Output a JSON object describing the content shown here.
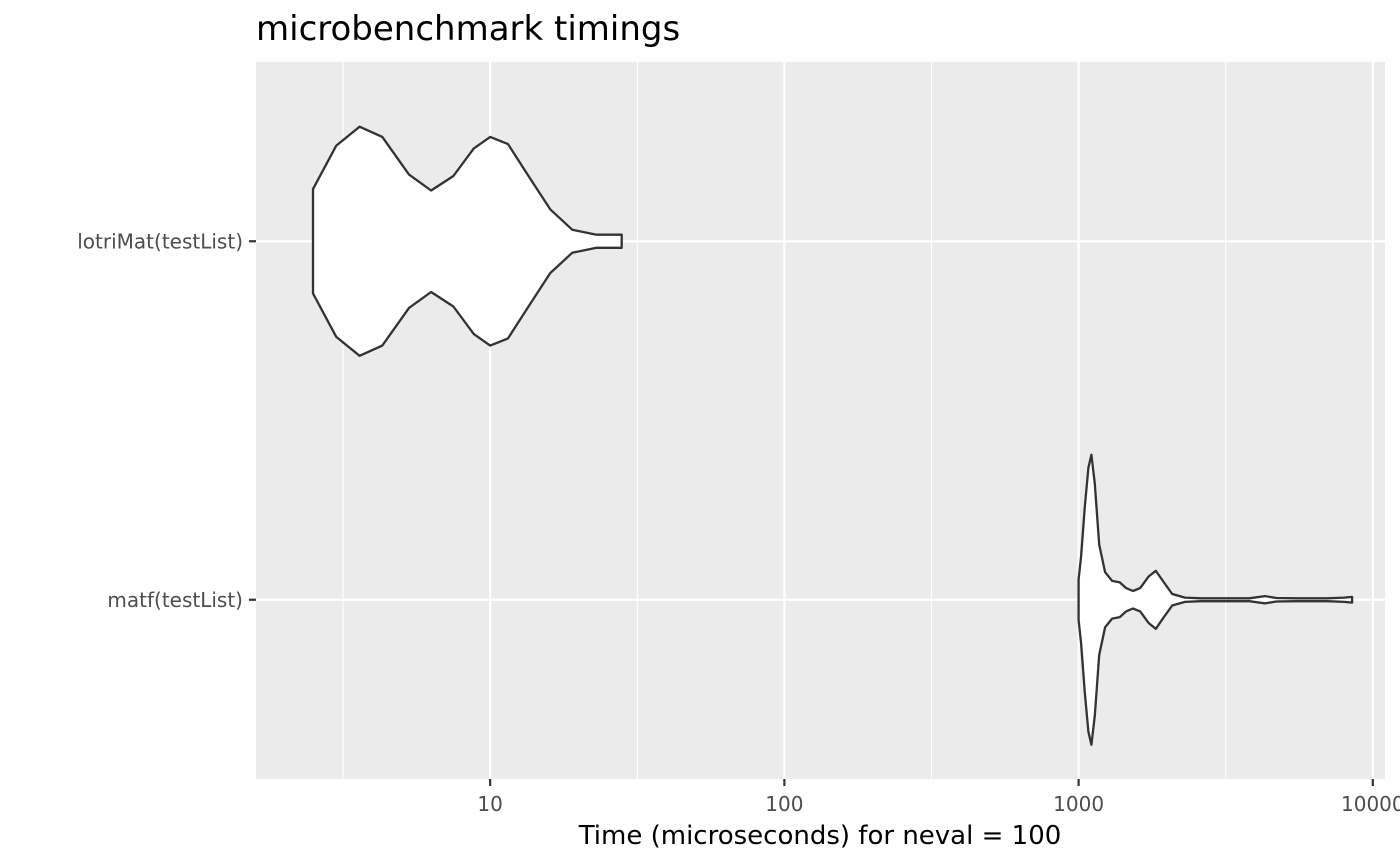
{
  "chart_data": {
    "type": "violin",
    "title": "microbenchmark timings",
    "xlabel": "Time (microseconds) for neval = 100",
    "ylabel": "",
    "x_scale": "log10",
    "xlim": [
      1.6,
      11000
    ],
    "x_ticks": [
      10,
      100,
      1000,
      10000
    ],
    "x_tick_labels": [
      "10",
      "100",
      "1000",
      "10000"
    ],
    "categories": [
      "lotriMat(testList)",
      "matf(testList)"
    ],
    "grid": true,
    "legend": "none",
    "colors": {
      "panel_background": "#EBEBEB",
      "grid": "#FFFFFF",
      "violin_fill": "#FFFFFF",
      "violin_outline": "#333333",
      "tick_label": "#4D4D4D"
    },
    "violins": [
      {
        "category": "lotriMat(testList)",
        "min": 2.5,
        "max": 28,
        "density_profile": [
          [
            2.5,
            0.36
          ],
          [
            3.0,
            0.66
          ],
          [
            3.6,
            0.79
          ],
          [
            4.3,
            0.72
          ],
          [
            5.3,
            0.46
          ],
          [
            6.3,
            0.35
          ],
          [
            7.5,
            0.45
          ],
          [
            8.8,
            0.64
          ],
          [
            10.0,
            0.72
          ],
          [
            11.5,
            0.67
          ],
          [
            13.5,
            0.45
          ],
          [
            16.0,
            0.22
          ],
          [
            19.0,
            0.08
          ],
          [
            23.0,
            0.045
          ],
          [
            28.0,
            0.045
          ]
        ]
      },
      {
        "category": "matf(testList)",
        "min": 1000,
        "max": 8500,
        "density_profile": [
          [
            1000,
            0.07
          ],
          [
            1000,
            0.14
          ],
          [
            1020,
            0.3
          ],
          [
            1050,
            0.64
          ],
          [
            1080,
            0.91
          ],
          [
            1105,
            1.0
          ],
          [
            1135,
            0.8
          ],
          [
            1175,
            0.38
          ],
          [
            1230,
            0.19
          ],
          [
            1300,
            0.13
          ],
          [
            1380,
            0.12
          ],
          [
            1450,
            0.08
          ],
          [
            1530,
            0.06
          ],
          [
            1620,
            0.08
          ],
          [
            1730,
            0.16
          ],
          [
            1830,
            0.2
          ],
          [
            1950,
            0.12
          ],
          [
            2080,
            0.04
          ],
          [
            2300,
            0.015
          ],
          [
            2600,
            0.01
          ],
          [
            3200,
            0.01
          ],
          [
            3800,
            0.01
          ],
          [
            4300,
            0.025
          ],
          [
            4700,
            0.012
          ],
          [
            5500,
            0.01
          ],
          [
            7000,
            0.01
          ],
          [
            8000,
            0.015
          ],
          [
            8500,
            0.02
          ]
        ]
      }
    ]
  }
}
